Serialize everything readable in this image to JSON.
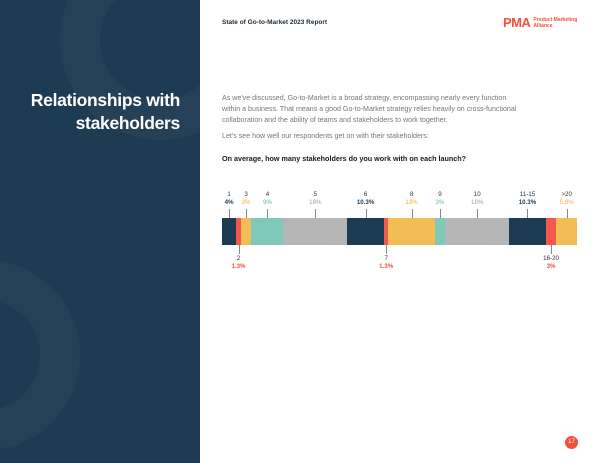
{
  "header": {
    "report_title": "State of Go-to-Market 2023 Report",
    "logo_mark": "PMA",
    "logo_text_1": "Product Marketing",
    "logo_text_2": "Alliance"
  },
  "sidebar": {
    "title": "Relationships with stakeholders"
  },
  "body": {
    "paragraph_1": "As we've discussed, Go-to-Market is a broad strategy, encompassing nearly every function within a business. That means a good Go-to-Market strategy relies heavily on cross-functional collaboration and the ability of teams and stakeholders to work together.",
    "paragraph_2": "Let's see how well our respondents get on with their stakeholders:"
  },
  "chart_data": {
    "type": "bar",
    "subtype": "100% stacked horizontal",
    "title": "On average, how many stakeholders do you work with on each launch?",
    "categories": [
      "1",
      "2",
      "3",
      "4",
      "5",
      "6",
      "7",
      "8",
      "9",
      "10",
      "11-15",
      "16-20",
      ">20"
    ],
    "values": [
      4,
      1.3,
      3,
      9,
      18,
      10.3,
      1.3,
      13,
      3,
      18,
      10.3,
      3,
      5.8
    ],
    "value_labels": [
      "4%",
      "1.3%",
      "3%",
      "9%",
      "18%",
      "10.3%",
      "1.3%",
      "13%",
      "3%",
      "18%",
      "10.3%",
      "3%",
      "5.8%"
    ],
    "label_position": [
      "top",
      "bottom",
      "top",
      "top",
      "top",
      "top",
      "bottom",
      "top",
      "top",
      "top",
      "top",
      "bottom",
      "top"
    ],
    "colors": [
      "#1d3b53",
      "#f4584a",
      "#f3bd55",
      "#80c9ba",
      "#b5b5b5",
      "#1d3b53",
      "#f4584a",
      "#f3bd55",
      "#80c9ba",
      "#b5b5b5",
      "#1d3b53",
      "#f4584a",
      "#f3bd55"
    ]
  },
  "page_number": "17"
}
